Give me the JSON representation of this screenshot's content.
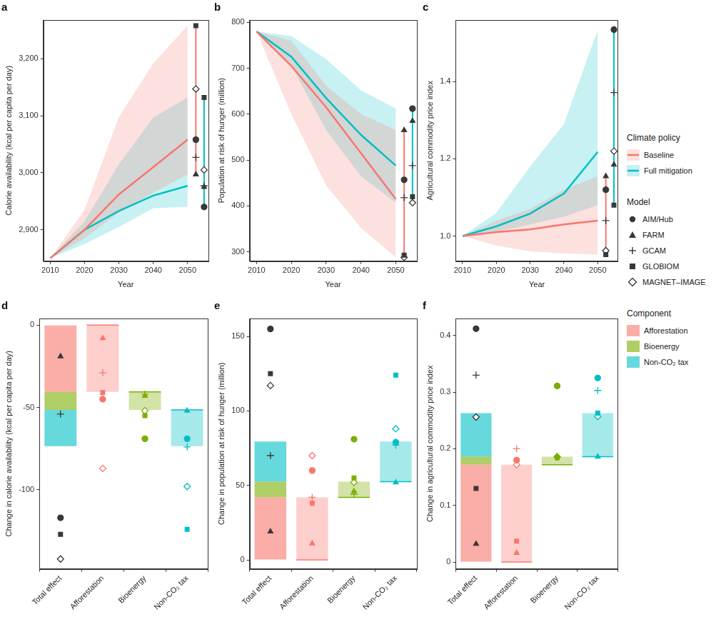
{
  "legend_titles": [
    "Climate policy",
    "Model",
    "Component"
  ],
  "models": [
    {
      "name": "AIM/Hub",
      "marker": "circle",
      "color": "#383838"
    },
    {
      "name": "FARM",
      "marker": "triangle",
      "color": "#383838"
    },
    {
      "name": "GCAM",
      "marker": "plus",
      "color": "#383838"
    },
    {
      "name": "GLOBIOM",
      "marker": "square",
      "color": "#383838"
    },
    {
      "name": "MAGNET–IMAGE",
      "marker": "open diamond",
      "color": "#383838"
    }
  ],
  "chart_data": [
    {
      "type": "line",
      "title": "a",
      "x_label": "Year",
      "y_label": "Calorie availability (kcal per capita per day)",
      "x": [
        2010,
        2020,
        2030,
        2040,
        2050
      ],
      "xlim": [
        2008,
        2056
      ],
      "xticks": [
        2010,
        2020,
        2030,
        2040,
        2050
      ],
      "ylim": [
        2845,
        3268
      ],
      "yticks": [
        {
          "value": 2900,
          "label": "2,900"
        },
        {
          "value": 3000,
          "label": "3,000"
        },
        {
          "value": 3100,
          "label": "3,100"
        },
        {
          "value": 3200,
          "label": "3,200"
        }
      ],
      "grid": false,
      "series": [
        {
          "name": "Baseline",
          "color": "#f8766d",
          "values": [
            2850,
            2900,
            2962,
            3010,
            3058
          ],
          "upper": [
            2850,
            2935,
            3098,
            3192,
            3258
          ],
          "lower": [
            2850,
            2885,
            2930,
            2965,
            2997
          ],
          "model_values": [
            3058,
            2997,
            3027,
            3258,
            3147
          ]
        },
        {
          "name": "Full mitigation",
          "color": "#00bfc4",
          "values": [
            2850,
            2900,
            2933,
            2960,
            2977
          ],
          "upper": [
            2850,
            2915,
            3015,
            3097,
            3132
          ],
          "lower": [
            2850,
            2875,
            2905,
            2938,
            2940
          ],
          "model_values": [
            2940,
            2975,
            2977,
            3132,
            3005
          ]
        }
      ]
    },
    {
      "type": "line",
      "title": "b",
      "x_label": "Year",
      "y_label": "Population at risk of hunger (million)",
      "x": [
        2010,
        2020,
        2030,
        2040,
        2050
      ],
      "xlim": [
        2008,
        2056
      ],
      "xticks": [
        2010,
        2020,
        2030,
        2040,
        2050
      ],
      "ylim": [
        280,
        805
      ],
      "yticks": [
        300,
        400,
        500,
        600,
        700,
        800
      ],
      "grid": false,
      "series": [
        {
          "name": "Baseline",
          "color": "#f8766d",
          "values": [
            780,
            705,
            615,
            515,
            415
          ],
          "upper": [
            780,
            760,
            662,
            600,
            565
          ],
          "lower": [
            780,
            600,
            445,
            352,
            288
          ],
          "model_values": [
            457,
            565,
            418,
            293,
            288
          ]
        },
        {
          "name": "Full mitigation",
          "color": "#00bfc4",
          "values": [
            780,
            725,
            635,
            555,
            488
          ],
          "upper": [
            780,
            770,
            720,
            652,
            612
          ],
          "lower": [
            780,
            705,
            565,
            465,
            407
          ],
          "model_values": [
            612,
            585,
            488,
            420,
            407
          ]
        }
      ]
    },
    {
      "type": "line",
      "title": "c",
      "x_label": "Year",
      "y_label": "Agricultural commodity price index",
      "x": [
        2010,
        2020,
        2030,
        2040,
        2050
      ],
      "xlim": [
        2008,
        2056
      ],
      "xticks": [
        2010,
        2020,
        2030,
        2040,
        2050
      ],
      "ylim": [
        0.935,
        1.56
      ],
      "yticks": [
        {
          "value": 1,
          "label": "1.0"
        },
        1.2,
        1.4
      ],
      "grid": false,
      "series": [
        {
          "name": "Baseline",
          "color": "#f8766d",
          "values": [
            1,
            1.01,
            1.017,
            1.03,
            1.04
          ],
          "upper": [
            1,
            1.04,
            1.07,
            1.12,
            1.155
          ],
          "lower": [
            1,
            0.975,
            0.96,
            0.955,
            0.952
          ],
          "model_values": [
            1.12,
            1.155,
            1.04,
            0.952,
            0.962
          ]
        },
        {
          "name": "Full mitigation",
          "color": "#00bfc4",
          "values": [
            1,
            1.025,
            1.058,
            1.11,
            1.218
          ],
          "upper": [
            1,
            1.06,
            1.18,
            1.29,
            1.535
          ],
          "lower": [
            1,
            1.01,
            1.03,
            1.05,
            1.08
          ],
          "model_values": [
            1.535,
            1.185,
            1.372,
            1.08,
            1.22
          ]
        }
      ]
    },
    {
      "type": "bar",
      "title": "d",
      "y_label": "Change in calorie availability (kcal per capita per day)",
      "categories": [
        "Total effect",
        "Afforestation",
        "Bioenergy",
        "Non-CO₂ tax"
      ],
      "ylim": [
        -148,
        4
      ],
      "yticks": [
        -100,
        -50,
        0
      ],
      "grid": false,
      "stacked": true,
      "series": [
        {
          "name": "Afforestation",
          "color": "#f8766d",
          "value": -40.5
        },
        {
          "name": "Bioenergy",
          "color": "#7cae00",
          "value": -11
        },
        {
          "name": "Non-CO₂ tax",
          "color": "#00bfc4",
          "value": -22
        }
      ],
      "model_values": [
        [
          -117,
          -45,
          -69,
          -69
        ],
        [
          -19,
          -8,
          -43,
          -52
        ],
        [
          -54,
          -29,
          -42,
          -74
        ],
        [
          -127,
          -41,
          -55,
          -124
        ],
        [
          -142,
          -87,
          -52,
          -98
        ]
      ]
    },
    {
      "type": "bar",
      "title": "e",
      "y_label": "Change in population at risk of hunger (million)",
      "categories": [
        "Total effect",
        "Afforestation",
        "Bioenergy",
        "Non-CO₂ tax"
      ],
      "ylim": [
        -6,
        162
      ],
      "yticks": [
        0,
        50,
        100,
        150
      ],
      "grid": false,
      "stacked": true,
      "series": [
        {
          "name": "Afforestation",
          "color": "#f8766d",
          "value": 42
        },
        {
          "name": "Bioenergy",
          "color": "#7cae00",
          "value": 10.5
        },
        {
          "name": "Non-CO₂ tax",
          "color": "#00bfc4",
          "value": 27
        }
      ],
      "model_values": [
        [
          155,
          60,
          81,
          79
        ],
        [
          19,
          11,
          46,
          52
        ],
        [
          70,
          42,
          44,
          77
        ],
        [
          125,
          38,
          55,
          124
        ],
        [
          117,
          70,
          52,
          88
        ]
      ]
    },
    {
      "type": "bar",
      "title": "f",
      "y_label": "Change in agricultural commodity price index",
      "categories": [
        "Total effect",
        "Afforestation",
        "Bioenergy",
        "Non-CO₂ tax"
      ],
      "ylim": [
        -0.012,
        0.43
      ],
      "yticks": [
        0,
        0.1,
        0.2,
        0.3,
        0.4
      ],
      "grid": false,
      "stacked": true,
      "series": [
        {
          "name": "Afforestation",
          "color": "#f8766d",
          "value": 0.172
        },
        {
          "name": "Bioenergy",
          "color": "#7cae00",
          "value": 0.014
        },
        {
          "name": "Non-CO₂ tax",
          "color": "#00bfc4",
          "value": 0.077
        }
      ],
      "model_values": [
        [
          0.412,
          0.18,
          0.311,
          0.325
        ],
        [
          0.032,
          0.016,
          0.187,
          0.186
        ],
        [
          0.33,
          0.2,
          0.185,
          0.303
        ],
        [
          0.13,
          0.037,
          0.184,
          0.263
        ],
        [
          0.256,
          0.172,
          0.186,
          0.257
        ]
      ]
    }
  ]
}
